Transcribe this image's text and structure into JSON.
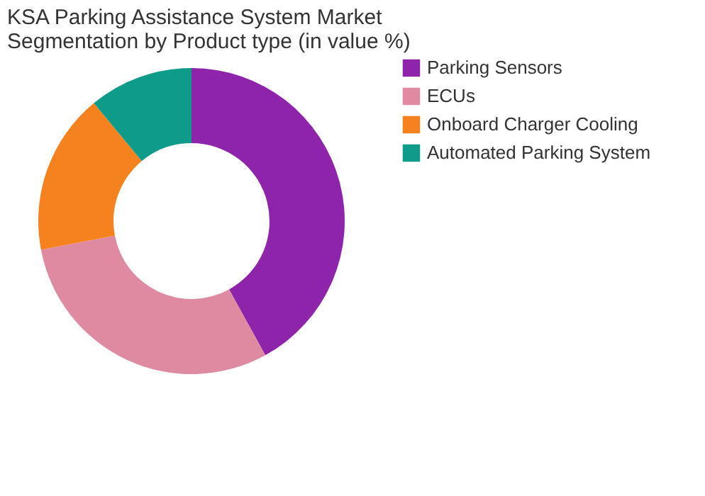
{
  "chart_data": {
    "type": "donut",
    "title": [
      "KSA Parking Assistance System Market",
      "Segmentation by Product type (in value %)"
    ],
    "categories": [
      "Parking Sensors",
      "ECUs",
      "Onboard Charger Cooling",
      "Automated Parking System"
    ],
    "values": [
      42,
      30,
      17,
      11
    ],
    "colors": [
      "#8e24aa",
      "#de8aa0",
      "#f5821f",
      "#0e9b8a"
    ],
    "legend": "right"
  }
}
